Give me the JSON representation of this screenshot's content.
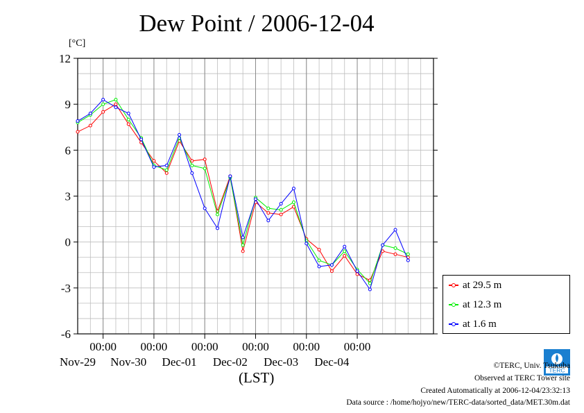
{
  "chart_data": {
    "type": "line",
    "title": "Dew Point / 2006-12-04",
    "ylabel": "[°C]",
    "xlabel": "(LST)",
    "ylim": [
      -6,
      12
    ],
    "yticks": [
      -6,
      -3,
      0,
      3,
      6,
      9,
      12
    ],
    "xlim_days": [
      "Nov-28 12:00",
      "Dec-04 23:59"
    ],
    "xticks": [
      {
        "time": "00:00",
        "day": "Nov-29"
      },
      {
        "time": "00:00",
        "day": "Nov-30"
      },
      {
        "time": "00:00",
        "day": "Dec-01"
      },
      {
        "time": "00:00",
        "day": "Dec-02"
      },
      {
        "time": "00:00",
        "day": "Dec-03"
      },
      {
        "time": "00:00",
        "day": "Dec-04"
      }
    ],
    "x_hours_from_nov29_00": [
      -12,
      -6,
      0,
      6,
      12,
      18,
      24,
      30,
      36,
      42,
      48,
      54,
      60,
      66,
      72,
      78,
      84,
      90,
      96,
      102,
      108,
      114,
      120,
      126,
      132,
      138,
      144
    ],
    "series": [
      {
        "name": "at 29.5 m",
        "color": "#ff0000",
        "values": [
          7.2,
          7.6,
          8.5,
          9.0,
          7.7,
          6.5,
          5.3,
          4.5,
          6.6,
          5.3,
          5.4,
          2.0,
          4.3,
          -0.6,
          2.6,
          1.9,
          1.8,
          2.3,
          0.2,
          -0.5,
          -1.9,
          -0.9,
          -2.1,
          -2.5,
          -0.6,
          -0.8,
          -1.0
        ]
      },
      {
        "name": "at 12.3 m",
        "color": "#00ee00",
        "values": [
          7.8,
          8.3,
          9.0,
          9.3,
          8.0,
          6.8,
          5.0,
          4.7,
          6.8,
          5.0,
          4.8,
          1.8,
          4.2,
          -0.2,
          2.9,
          2.2,
          2.1,
          2.6,
          0.1,
          -1.2,
          -1.5,
          -0.6,
          -1.8,
          -2.7,
          -0.2,
          -0.4,
          -0.8
        ]
      },
      {
        "name": "at 1.6 m",
        "color": "#0000ff",
        "values": [
          7.9,
          8.4,
          9.3,
          8.8,
          8.4,
          6.7,
          4.9,
          5.0,
          7.0,
          4.5,
          2.2,
          0.9,
          4.3,
          0.3,
          2.8,
          1.4,
          2.5,
          3.5,
          -0.1,
          -1.6,
          -1.5,
          -0.3,
          -1.9,
          -3.1,
          -0.2,
          0.8,
          -1.2
        ]
      }
    ]
  },
  "footer": {
    "copyright": "©TERC, Univ. Tsukuba",
    "observed": "Observed at TERC Tower site",
    "created": "Created Automatically at 2006-12-04/23:32:13",
    "source": "Data source : /home/hojyo/new/TERC-data/sorted_data/MET.30m.dat",
    "logo_text": "TERC"
  }
}
